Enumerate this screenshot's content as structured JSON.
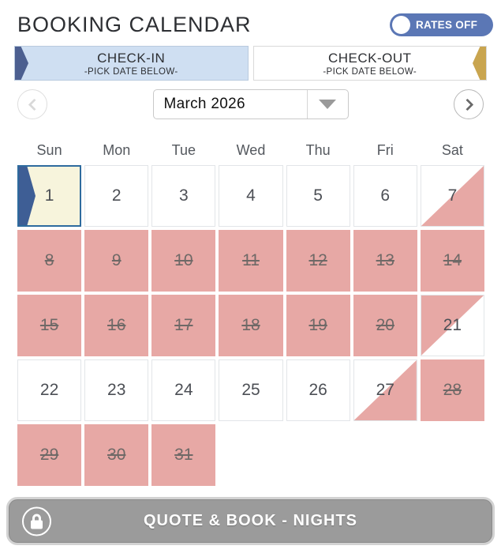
{
  "header": {
    "title": "BOOKING CALENDAR",
    "rates_toggle_label": "RATES OFF",
    "rates_toggle_state": "off"
  },
  "tabs": {
    "check_in": {
      "label": "CHECK-IN",
      "sublabel": "-PICK DATE BELOW-",
      "active": true
    },
    "check_out": {
      "label": "CHECK-OUT",
      "sublabel": "-PICK DATE BELOW-",
      "active": false
    }
  },
  "month_nav": {
    "selected_month": "March 2026",
    "prev_icon": "chevron-left",
    "next_icon": "chevron-right",
    "caret_icon": "triangle-down"
  },
  "calendar": {
    "day_headers": [
      "Sun",
      "Mon",
      "Tue",
      "Wed",
      "Thu",
      "Fri",
      "Sat"
    ],
    "weeks": [
      [
        {
          "day": "1",
          "state": "selected"
        },
        {
          "day": "2",
          "state": "open"
        },
        {
          "day": "3",
          "state": "open"
        },
        {
          "day": "4",
          "state": "open"
        },
        {
          "day": "5",
          "state": "open"
        },
        {
          "day": "6",
          "state": "open"
        },
        {
          "day": "7",
          "state": "half-start"
        }
      ],
      [
        {
          "day": "8",
          "state": "booked"
        },
        {
          "day": "9",
          "state": "booked"
        },
        {
          "day": "10",
          "state": "booked"
        },
        {
          "day": "11",
          "state": "booked"
        },
        {
          "day": "12",
          "state": "booked"
        },
        {
          "day": "13",
          "state": "booked"
        },
        {
          "day": "14",
          "state": "booked"
        }
      ],
      [
        {
          "day": "15",
          "state": "booked"
        },
        {
          "day": "16",
          "state": "booked"
        },
        {
          "day": "17",
          "state": "booked"
        },
        {
          "day": "18",
          "state": "booked"
        },
        {
          "day": "19",
          "state": "booked"
        },
        {
          "day": "20",
          "state": "booked"
        },
        {
          "day": "21",
          "state": "half-end"
        }
      ],
      [
        {
          "day": "22",
          "state": "open"
        },
        {
          "day": "23",
          "state": "open"
        },
        {
          "day": "24",
          "state": "open"
        },
        {
          "day": "25",
          "state": "open"
        },
        {
          "day": "26",
          "state": "open"
        },
        {
          "day": "27",
          "state": "half-start"
        },
        {
          "day": "28",
          "state": "booked"
        }
      ],
      [
        {
          "day": "29",
          "state": "booked"
        },
        {
          "day": "30",
          "state": "booked"
        },
        {
          "day": "31",
          "state": "booked"
        },
        {
          "day": "",
          "state": "empty"
        },
        {
          "day": "",
          "state": "empty"
        },
        {
          "day": "",
          "state": "empty"
        },
        {
          "day": "",
          "state": "empty"
        }
      ]
    ]
  },
  "footer": {
    "button_label": "QUOTE & BOOK - NIGHTS",
    "lock_icon": "lock"
  },
  "colors": {
    "accent_blue": "#5b77b5",
    "checkin_tab_bg": "#cfdff2",
    "checkin_arrow": "#4c5f90",
    "checkout_arrow": "#c9a54f",
    "booked_pink": "#e7a8a5",
    "selected_cream": "#f7f4dc",
    "selected_border": "#2e6b9e",
    "flag_navy": "#3e5e95",
    "button_gray": "#9b9b9b"
  }
}
